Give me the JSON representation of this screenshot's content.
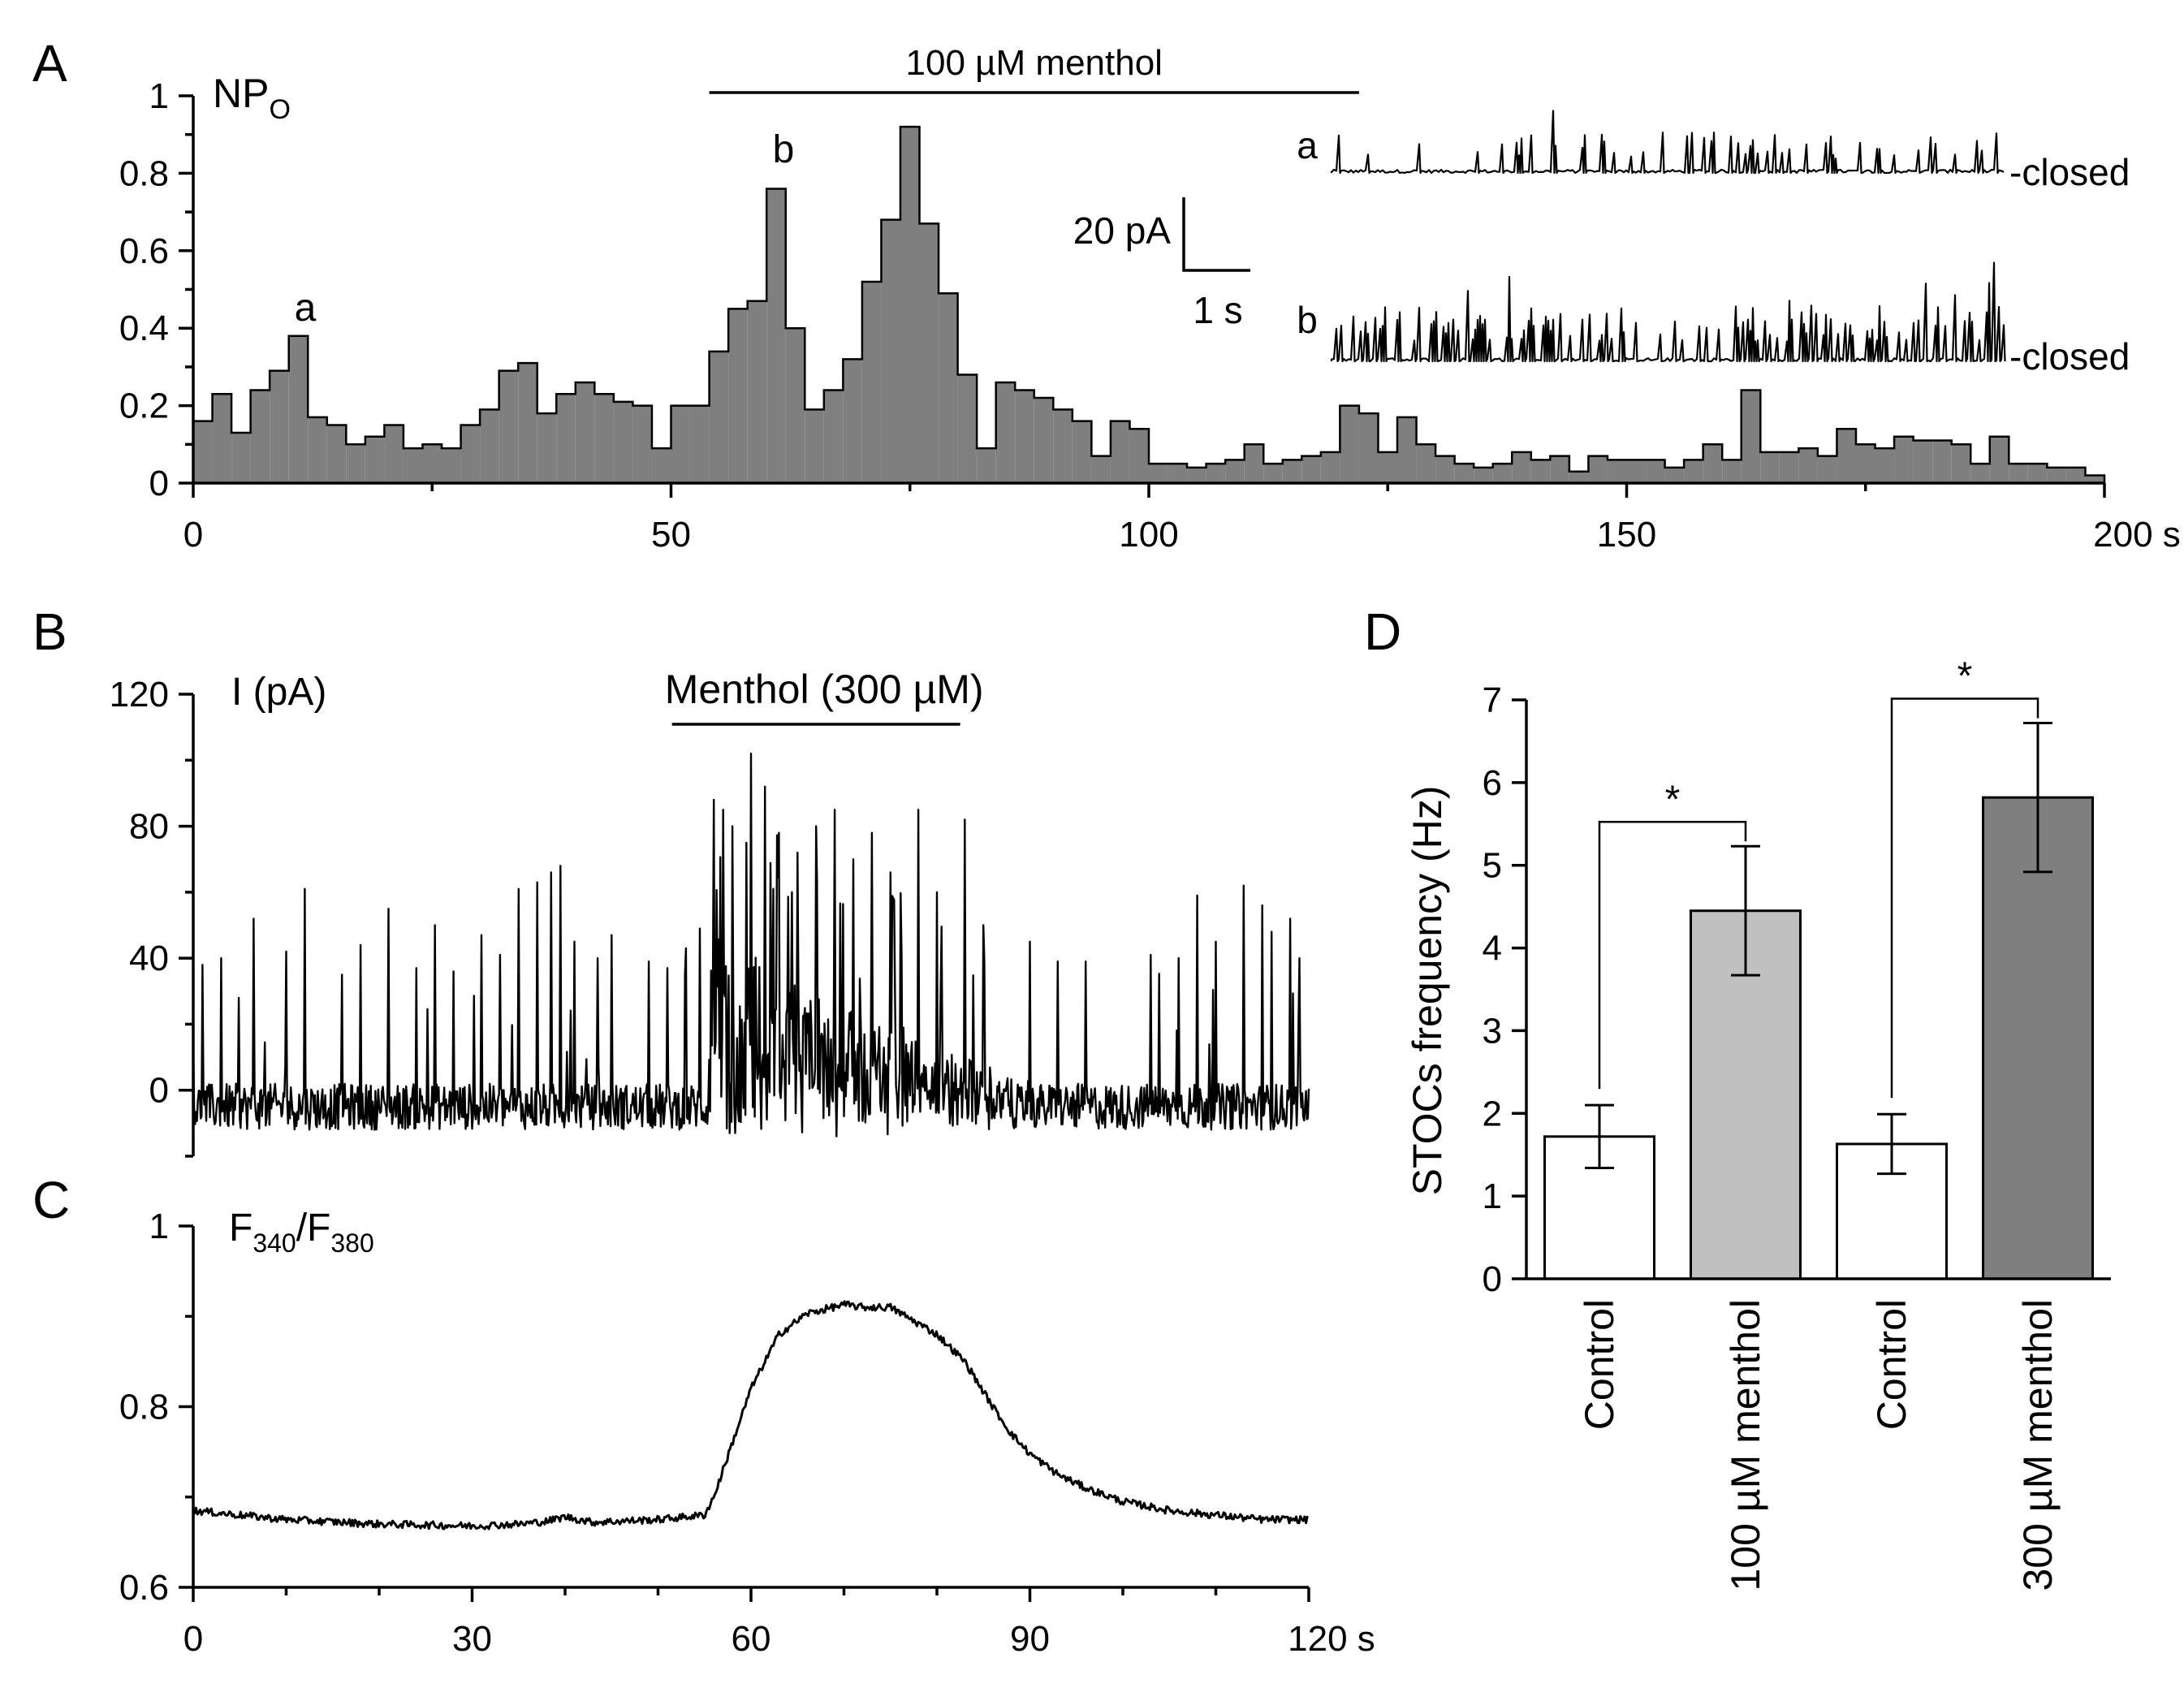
{
  "figure": {
    "panels": {
      "A": {
        "letter": "A",
        "ylabel_main": "NP",
        "ylabel_sub": "O",
        "drug_label": "100 µM menthol",
        "drug_window_s": [
          54,
          122
        ],
        "marker_a": "a",
        "marker_b": "b",
        "scale_bar_y": "20 pA",
        "scale_bar_x": "1 s",
        "inset_a_label": "a",
        "inset_b_label": "b",
        "inset_a_closed": "-closed",
        "inset_b_closed": "-closed"
      },
      "B": {
        "letter": "B",
        "ylabel": "I (pA)",
        "drug_label": "Menthol (300 µM)",
        "drug_window_s": [
          51.5,
          82.5
        ]
      },
      "C": {
        "letter": "C",
        "ylabel_main": "F",
        "ylabel_sub1": "340",
        "ylabel_slash": "/F",
        "ylabel_sub2": "380"
      },
      "D": {
        "letter": "D",
        "ylabel": "STOCs frequency (Hz)",
        "sig_marker_1": "*",
        "sig_marker_2": "*"
      }
    }
  },
  "colors": {
    "hist_fill": "#7f7f7f",
    "light_bar": "#c0c0c0",
    "dark_bar": "#7f7f7f",
    "white_bar": "#ffffff",
    "line": "#000000"
  },
  "chart_data": [
    {
      "id": "A",
      "type": "histogram",
      "title": "",
      "xlabel": "",
      "ylabel": "NPO",
      "x_units": "s",
      "bin_width_s": 2,
      "xlim": [
        0,
        200
      ],
      "ylim": [
        0,
        1
      ],
      "xticks": [
        "0",
        "50",
        "100",
        "150",
        "200 s"
      ],
      "yticks": [
        "0",
        "0.2",
        "0.4",
        "0.6",
        "0.8",
        "1"
      ],
      "values": [
        0.16,
        0.23,
        0.13,
        0.24,
        0.29,
        0.38,
        0.17,
        0.15,
        0.1,
        0.12,
        0.15,
        0.09,
        0.1,
        0.09,
        0.15,
        0.19,
        0.29,
        0.31,
        0.18,
        0.23,
        0.26,
        0.23,
        0.21,
        0.2,
        0.09,
        0.2,
        0.2,
        0.34,
        0.45,
        0.47,
        0.76,
        0.4,
        0.19,
        0.24,
        0.32,
        0.52,
        0.68,
        0.92,
        0.67,
        0.49,
        0.28,
        0.09,
        0.26,
        0.24,
        0.22,
        0.19,
        0.16,
        0.07,
        0.16,
        0.14,
        0.05,
        0.05,
        0.04,
        0.05,
        0.06,
        0.1,
        0.05,
        0.06,
        0.07,
        0.08,
        0.2,
        0.18,
        0.08,
        0.17,
        0.1,
        0.07,
        0.05,
        0.04,
        0.05,
        0.08,
        0.06,
        0.07,
        0.03,
        0.07,
        0.06,
        0.06,
        0.06,
        0.04,
        0.06,
        0.1,
        0.06,
        0.24,
        0.08,
        0.08,
        0.09,
        0.07,
        0.14,
        0.1,
        0.09,
        0.12,
        0.11,
        0.11,
        0.1,
        0.05,
        0.12,
        0.05,
        0.05,
        0.04,
        0.04,
        0.02
      ]
    },
    {
      "id": "B",
      "type": "line",
      "title": "",
      "xlabel": "",
      "ylabel": "I (pA)",
      "xlim": [
        0,
        120
      ],
      "ylim": [
        -20,
        120
      ],
      "yticks": [
        "0",
        "40",
        "80",
        "120"
      ],
      "description": "Spontaneous transient outward currents; baseline about -5 pA with spikes to 40-68 pA; during menthol (300 µM) activity increases with peaks up to about 100 pA",
      "baseline_pA": -5,
      "control_peaks": [
        {
          "t": 1,
          "v": 38
        },
        {
          "t": 3,
          "v": 40
        },
        {
          "t": 6.5,
          "v": 52
        },
        {
          "t": 10,
          "v": 42
        },
        {
          "t": 12,
          "v": 61
        },
        {
          "t": 16,
          "v": 35
        },
        {
          "t": 18,
          "v": 44
        },
        {
          "t": 21,
          "v": 55
        },
        {
          "t": 24,
          "v": 37
        },
        {
          "t": 26,
          "v": 50
        },
        {
          "t": 28,
          "v": 36
        },
        {
          "t": 31,
          "v": 47
        },
        {
          "t": 33,
          "v": 41
        },
        {
          "t": 35,
          "v": 61
        },
        {
          "t": 37,
          "v": 63
        },
        {
          "t": 38.5,
          "v": 66
        },
        {
          "t": 39.5,
          "v": 68
        },
        {
          "t": 41,
          "v": 45
        },
        {
          "t": 43.5,
          "v": 40
        },
        {
          "t": 45,
          "v": 47
        },
        {
          "t": 49,
          "v": 39
        },
        {
          "t": 51,
          "v": 37
        },
        {
          "t": 53,
          "v": 43
        },
        {
          "t": 54.5,
          "v": 49
        },
        {
          "t": 90,
          "v": 45
        },
        {
          "t": 93,
          "v": 39
        },
        {
          "t": 96,
          "v": 39
        },
        {
          "t": 103,
          "v": 41
        },
        {
          "t": 106,
          "v": 40
        },
        {
          "t": 108,
          "v": 59
        },
        {
          "t": 110,
          "v": 45
        },
        {
          "t": 113,
          "v": 62
        },
        {
          "t": 115,
          "v": 56
        },
        {
          "t": 116,
          "v": 48
        },
        {
          "t": 118,
          "v": 52
        },
        {
          "t": 119,
          "v": 40
        }
      ],
      "menthol_peaks": [
        {
          "t": 56,
          "v": 88
        },
        {
          "t": 57,
          "v": 85
        },
        {
          "t": 58,
          "v": 80
        },
        {
          "t": 59.5,
          "v": 75
        },
        {
          "t": 60,
          "v": 102
        },
        {
          "t": 61.5,
          "v": 92
        },
        {
          "t": 63,
          "v": 78
        },
        {
          "t": 65,
          "v": 72
        },
        {
          "t": 67,
          "v": 80
        },
        {
          "t": 69,
          "v": 85
        },
        {
          "t": 71,
          "v": 70
        },
        {
          "t": 73,
          "v": 78
        },
        {
          "t": 75,
          "v": 66
        },
        {
          "t": 78,
          "v": 85
        },
        {
          "t": 80,
          "v": 60
        },
        {
          "t": 83,
          "v": 82
        },
        {
          "t": 85,
          "v": 50
        }
      ]
    },
    {
      "id": "C",
      "type": "line",
      "title": "",
      "xlabel": "",
      "ylabel": "F340/F380",
      "xlim": [
        0,
        120
      ],
      "ylim": [
        0.6,
        1.0
      ],
      "xticks": [
        "0",
        "30",
        "60",
        "90",
        "120 s"
      ],
      "yticks": [
        "0.6",
        "0.8",
        "1"
      ],
      "x": [
        0,
        10,
        20,
        30,
        35,
        38,
        40,
        43,
        50,
        55,
        56,
        58,
        60,
        63,
        66,
        70,
        72,
        75,
        80,
        83,
        86,
        88,
        90,
        93,
        96,
        100,
        105,
        110,
        115,
        120
      ],
      "y": [
        0.685,
        0.675,
        0.67,
        0.668,
        0.67,
        0.673,
        0.678,
        0.672,
        0.675,
        0.68,
        0.7,
        0.76,
        0.82,
        0.88,
        0.903,
        0.913,
        0.91,
        0.91,
        0.88,
        0.85,
        0.8,
        0.77,
        0.748,
        0.725,
        0.71,
        0.695,
        0.685,
        0.68,
        0.675,
        0.675
      ]
    },
    {
      "id": "D",
      "type": "bar",
      "title": "",
      "xlabel": "",
      "ylabel": "STOCs frequency (Hz)",
      "ylim": [
        0,
        7
      ],
      "yticks": [
        "0",
        "1",
        "2",
        "3",
        "4",
        "5",
        "6",
        "7"
      ],
      "categories": [
        "Control",
        "100 µM menthol",
        "Control",
        "300 µM menthol"
      ],
      "values": [
        1.72,
        4.45,
        1.63,
        5.82
      ],
      "errors": [
        0.38,
        0.78,
        0.36,
        0.9
      ],
      "bar_colors": [
        "#ffffff",
        "#c0c0c0",
        "#ffffff",
        "#7f7f7f"
      ],
      "significance": [
        {
          "between": [
            0,
            1
          ],
          "label": "*"
        },
        {
          "between": [
            2,
            3
          ],
          "label": "*"
        }
      ]
    }
  ]
}
